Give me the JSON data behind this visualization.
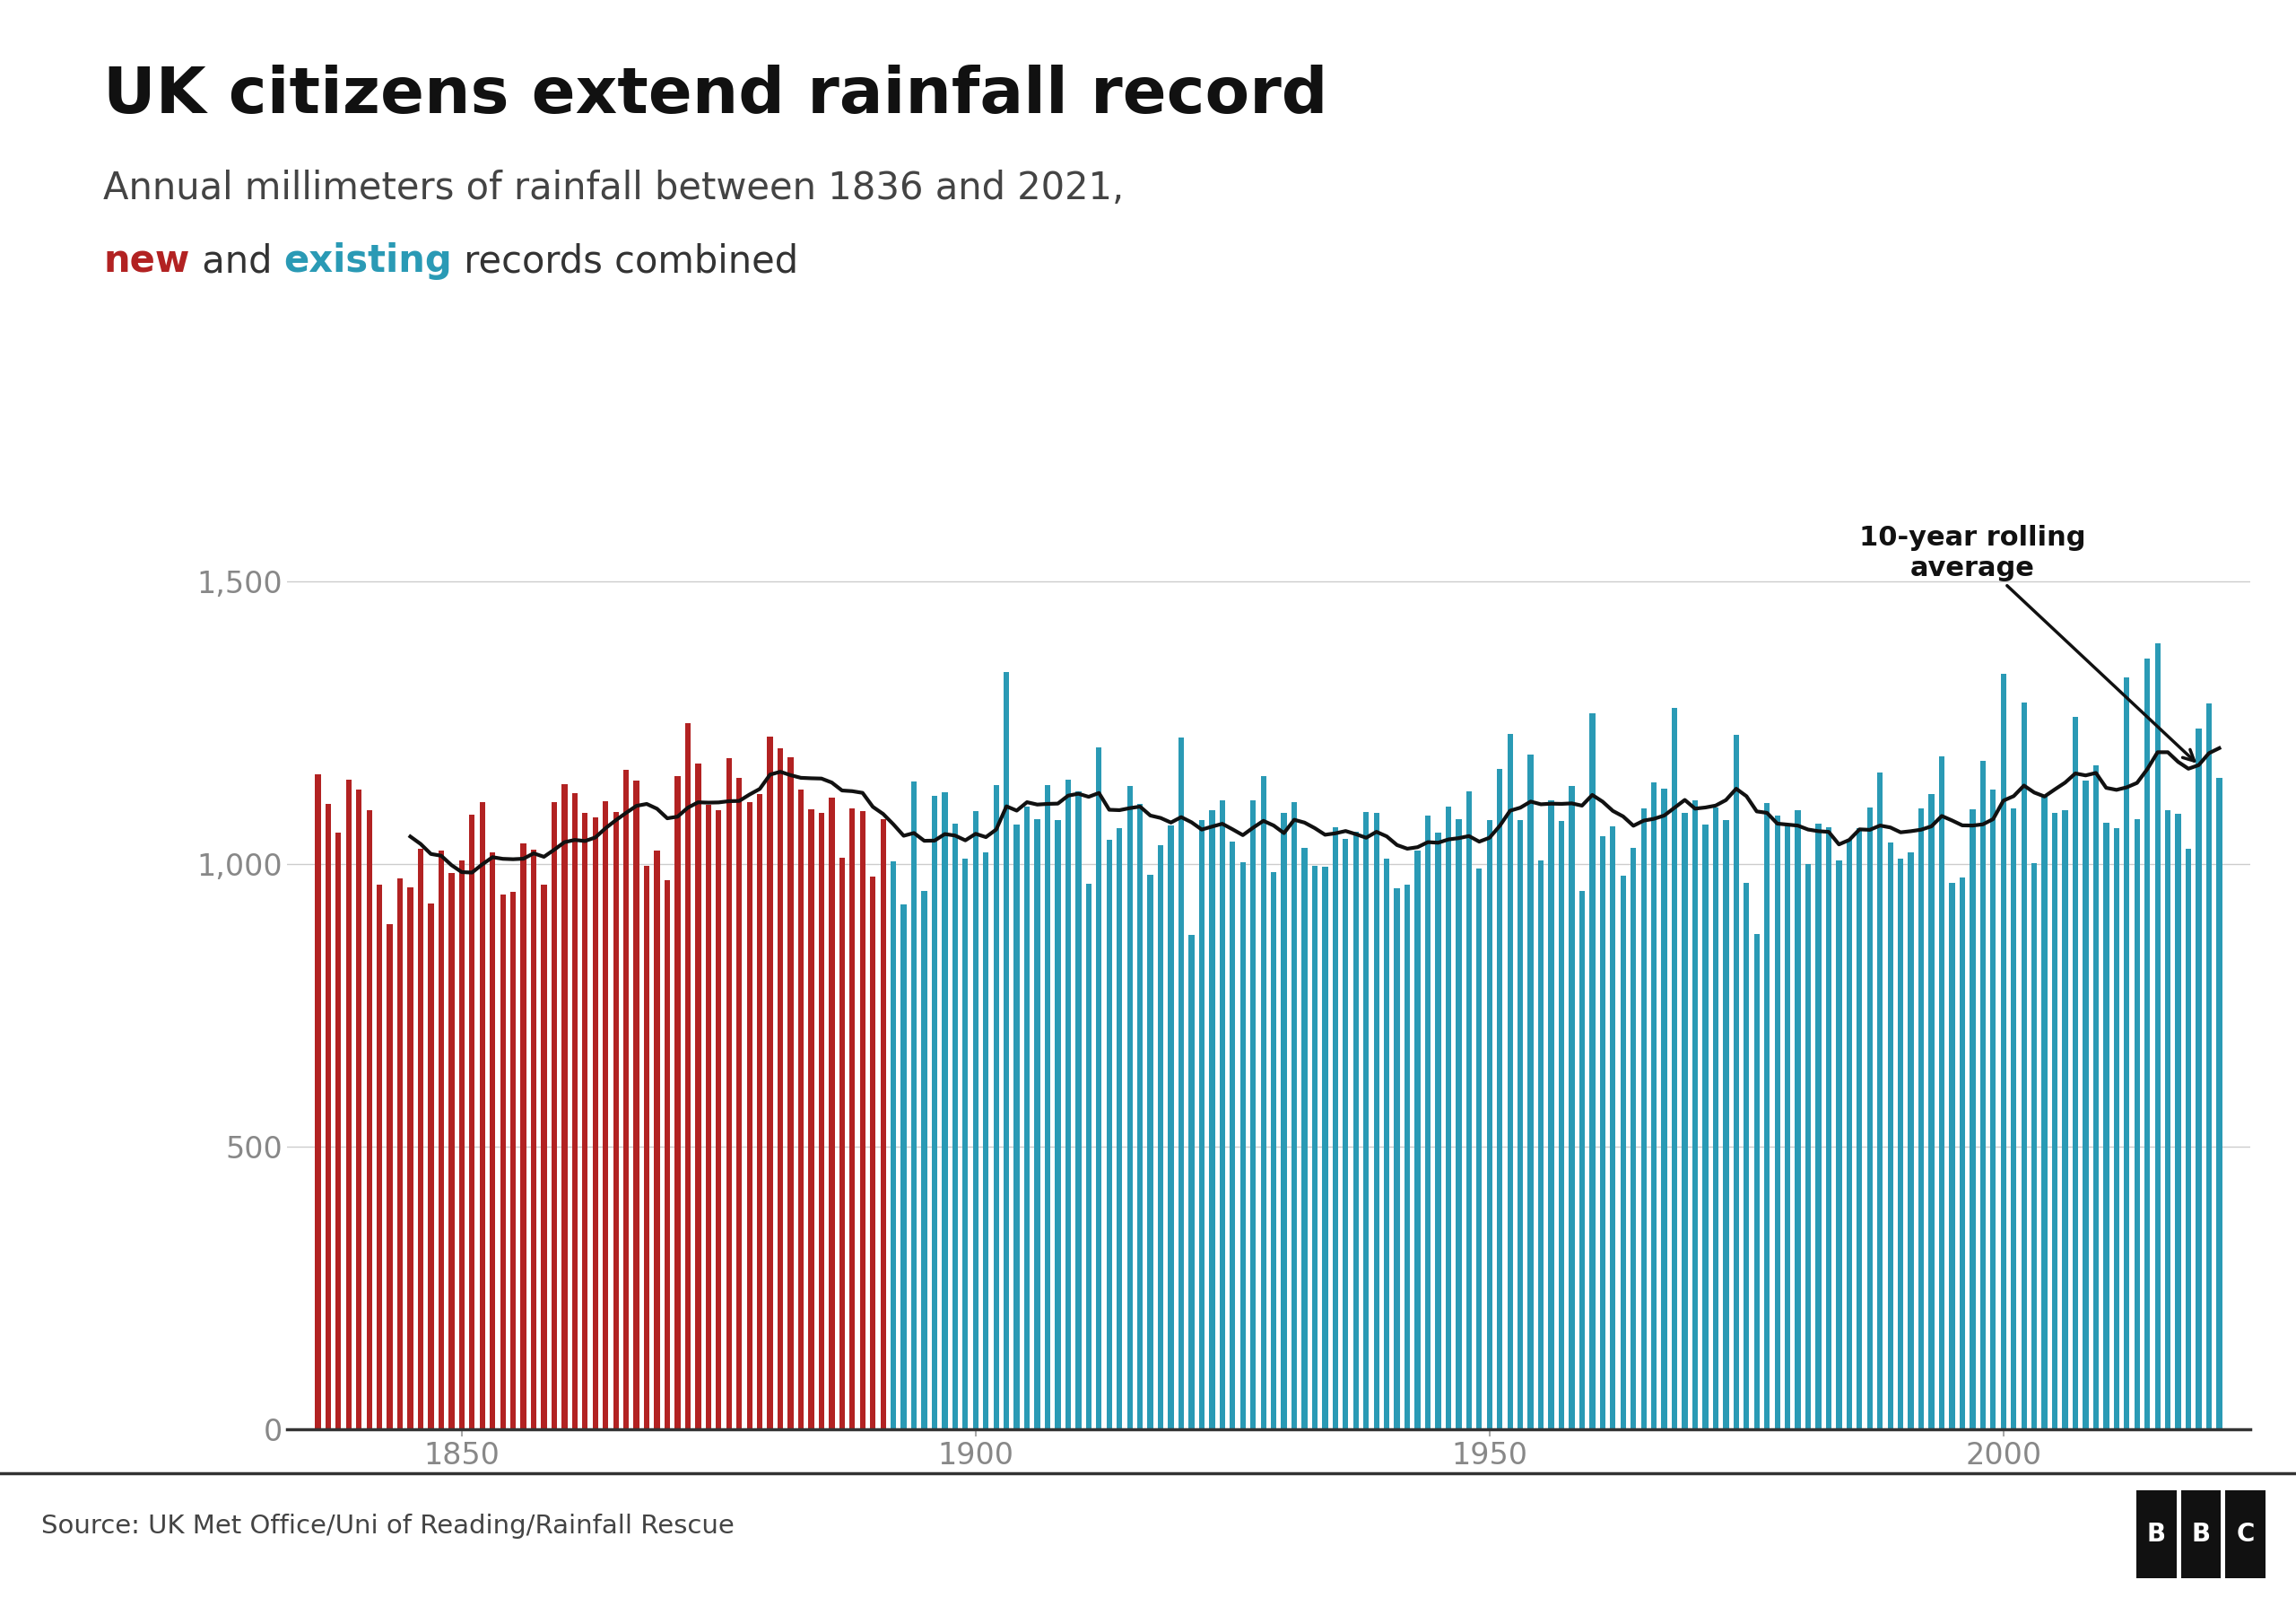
{
  "title": "UK citizens extend rainfall record",
  "subtitle_line1": "Annual millimeters of rainfall between 1836 and 2021,",
  "subtitle_line2_parts": [
    {
      "text": "new",
      "color": "#b22222",
      "bold": true
    },
    {
      "text": " and ",
      "color": "#333333",
      "bold": false
    },
    {
      "text": "existing",
      "color": "#2a9ab5",
      "bold": true
    },
    {
      "text": " records combined",
      "color": "#333333",
      "bold": false
    }
  ],
  "new_color": "#b22222",
  "existing_color": "#2a9ab5",
  "rolling_avg_color": "#111111",
  "annotation_text": "10-year rolling\naverage",
  "source_text": "Source: UK Met Office/Uni of Reading/Rainfall Rescue",
  "yticks": [
    0,
    500,
    1000,
    1500
  ],
  "xticks": [
    1850,
    1900,
    1950,
    2000
  ],
  "ylim": [
    0,
    1700
  ],
  "xlim": [
    1833,
    2024
  ],
  "new_cutoff_year": 1891,
  "background_color": "#ffffff",
  "bar_width": 0.55,
  "rainfall_data": {
    "1836": 1158,
    "1837": 1107,
    "1838": 1055,
    "1839": 1150,
    "1840": 1131,
    "1841": 1095,
    "1842": 964,
    "1843": 893,
    "1844": 975,
    "1845": 958,
    "1846": 1027,
    "1847": 930,
    "1848": 1024,
    "1849": 984,
    "1850": 1007,
    "1851": 1087,
    "1852": 1109,
    "1853": 1020,
    "1854": 946,
    "1855": 951,
    "1856": 1036,
    "1857": 1025,
    "1858": 963,
    "1859": 1109,
    "1860": 1141,
    "1861": 1126,
    "1862": 1090,
    "1863": 1083,
    "1864": 1111,
    "1865": 1092,
    "1866": 1166,
    "1867": 1148,
    "1868": 997,
    "1869": 1024,
    "1870": 972,
    "1871": 1155,
    "1872": 1249,
    "1873": 1178,
    "1874": 1105,
    "1875": 1096,
    "1876": 1188,
    "1877": 1152,
    "1878": 1110,
    "1879": 1124,
    "1880": 1225,
    "1881": 1205,
    "1882": 1189,
    "1883": 1131,
    "1884": 1097,
    "1885": 1091,
    "1886": 1118,
    "1887": 1011,
    "1888": 1098,
    "1889": 1094,
    "1890": 978,
    "1891": 1079,
    "1892": 1005,
    "1893": 929,
    "1894": 1146,
    "1895": 953,
    "1896": 1121,
    "1897": 1127,
    "1898": 1072,
    "1899": 1009,
    "1900": 1094,
    "1901": 1020,
    "1902": 1139,
    "1903": 1340,
    "1904": 1070,
    "1905": 1102,
    "1906": 1079,
    "1907": 1139,
    "1908": 1077,
    "1909": 1150,
    "1910": 1128,
    "1911": 965,
    "1912": 1207,
    "1913": 1043,
    "1914": 1063,
    "1915": 1138,
    "1916": 1106,
    "1917": 981,
    "1918": 1034,
    "1919": 1069,
    "1920": 1224,
    "1921": 874,
    "1922": 1078,
    "1923": 1095,
    "1924": 1113,
    "1925": 1040,
    "1926": 1003,
    "1927": 1113,
    "1928": 1155,
    "1929": 986,
    "1930": 1090,
    "1931": 1110,
    "1932": 1028,
    "1933": 997,
    "1934": 996,
    "1935": 1065,
    "1936": 1044,
    "1937": 1057,
    "1938": 1092,
    "1939": 1091,
    "1940": 1009,
    "1941": 957,
    "1942": 963,
    "1943": 1024,
    "1944": 1085,
    "1945": 1055,
    "1946": 1102,
    "1947": 1080,
    "1948": 1129,
    "1949": 992,
    "1950": 1078,
    "1951": 1168,
    "1952": 1230,
    "1953": 1078,
    "1954": 1193,
    "1955": 1007,
    "1956": 1113,
    "1957": 1076,
    "1958": 1138,
    "1959": 952,
    "1960": 1267,
    "1961": 1050,
    "1962": 1066,
    "1963": 980,
    "1964": 1028,
    "1965": 1098,
    "1966": 1145,
    "1967": 1134,
    "1968": 1276,
    "1969": 1090,
    "1970": 1113,
    "1971": 1070,
    "1972": 1100,
    "1973": 1077,
    "1974": 1229,
    "1975": 966,
    "1976": 876,
    "1977": 1108,
    "1978": 1086,
    "1979": 1072,
    "1980": 1096,
    "1981": 1000,
    "1982": 1071,
    "1983": 1065,
    "1984": 1007,
    "1985": 1045,
    "1986": 1063,
    "1987": 1100,
    "1988": 1162,
    "1989": 1038,
    "1990": 1010,
    "1991": 1020,
    "1992": 1098,
    "1993": 1124,
    "1994": 1190,
    "1995": 966,
    "1996": 976,
    "1997": 1097,
    "1998": 1183,
    "1999": 1131,
    "2000": 1337,
    "2001": 1099,
    "2002": 1285,
    "2003": 1001,
    "2004": 1120,
    "2005": 1091,
    "2006": 1096,
    "2007": 1260,
    "2008": 1148,
    "2009": 1175,
    "2010": 1073,
    "2011": 1063,
    "2012": 1330,
    "2013": 1079,
    "2014": 1363,
    "2015": 1391,
    "2016": 1096,
    "2017": 1089,
    "2018": 1027,
    "2019": 1239,
    "2020": 1284,
    "2021": 1152
  }
}
